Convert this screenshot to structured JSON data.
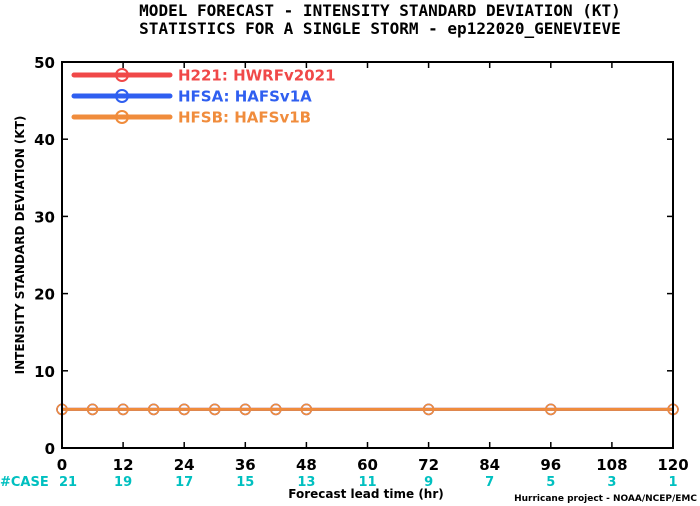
{
  "chart_data": {
    "type": "line",
    "title": "MODEL FORECAST - INTENSITY STANDARD DEVIATION (KT)",
    "subtitle": "STATISTICS FOR A SINGLE STORM - ep122020_GENEVIEVE",
    "xlabel": "Forecast lead time (hr)",
    "ylabel": "INTENSITY STANDARD DEVIATION (KT)",
    "xlim": [
      0,
      120
    ],
    "ylim": [
      0,
      50
    ],
    "xticks": [
      0,
      12,
      24,
      36,
      48,
      60,
      72,
      84,
      96,
      108,
      120
    ],
    "yticks": [
      0,
      10,
      20,
      30,
      40,
      50
    ],
    "grid": false,
    "legend_position": "top-left",
    "x": [
      0,
      6,
      12,
      18,
      24,
      30,
      36,
      42,
      48,
      72,
      96,
      120
    ],
    "series": [
      {
        "name": "H221: HWRFv2021",
        "color": "#f04848",
        "values": [
          5,
          5,
          5,
          5,
          5,
          5,
          5,
          5,
          5,
          5,
          5,
          5
        ]
      },
      {
        "name": "HFSA: HAFSv1A",
        "color": "#2f5ff0",
        "values": [
          5,
          5,
          5,
          5,
          5,
          5,
          5,
          5,
          5,
          5,
          5,
          5
        ]
      },
      {
        "name": "HFSB: HAFSv1B",
        "color": "#f08c3c",
        "values": [
          5,
          5,
          5,
          5,
          5,
          5,
          5,
          5,
          5,
          5,
          5,
          5
        ]
      }
    ],
    "case_label": "#CASE",
    "case_color": "#00c0c0",
    "case_hours": [
      0,
      12,
      24,
      36,
      48,
      60,
      72,
      84,
      96,
      108,
      120
    ],
    "case_counts": [
      "21",
      "19",
      "17",
      "15",
      "13",
      "11",
      "9",
      "7",
      "5",
      "3",
      "1"
    ],
    "credit": "Hurricane project - NOAA/NCEP/EMC"
  }
}
